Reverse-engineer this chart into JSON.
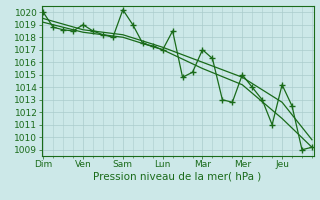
{
  "background_color": "#cce8e8",
  "grid_color": "#aacccc",
  "line_color": "#1a6b1a",
  "xlabel": "Pression niveau de la mer( hPa )",
  "day_labels": [
    "Dim",
    "Ven",
    "Sam",
    "Lun",
    "Mar",
    "Mer",
    "Jeu"
  ],
  "day_positions": [
    0,
    24,
    48,
    72,
    96,
    120,
    144
  ],
  "xlim": [
    -1,
    163
  ],
  "ylim": [
    1008.5,
    1020.5
  ],
  "yticks": [
    1009,
    1010,
    1011,
    1012,
    1013,
    1014,
    1015,
    1016,
    1017,
    1018,
    1019,
    1020
  ],
  "series1_x": [
    0,
    6,
    12,
    18,
    24,
    30,
    36,
    42,
    48,
    54,
    60,
    66,
    72,
    78,
    84,
    90,
    96,
    102,
    108,
    114,
    120,
    126,
    132,
    138,
    144,
    150,
    156,
    162
  ],
  "series1_y": [
    1020.0,
    1018.8,
    1018.6,
    1018.5,
    1019.0,
    1018.5,
    1018.2,
    1018.0,
    1020.2,
    1019.0,
    1017.5,
    1017.3,
    1017.0,
    1018.5,
    1014.8,
    1015.2,
    1017.0,
    1016.3,
    1013.0,
    1012.8,
    1015.0,
    1014.0,
    1013.0,
    1011.0,
    1014.2,
    1012.5,
    1009.0,
    1009.2
  ],
  "series2_x": [
    0,
    24,
    48,
    72,
    96,
    120,
    144,
    162
  ],
  "series2_y": [
    1019.5,
    1018.6,
    1018.2,
    1017.2,
    1016.0,
    1014.8,
    1012.8,
    1009.8
  ],
  "series3_x": [
    0,
    24,
    48,
    72,
    96,
    120,
    144,
    162
  ],
  "series3_y": [
    1019.2,
    1018.4,
    1018.0,
    1017.0,
    1015.5,
    1014.2,
    1011.5,
    1009.2
  ]
}
